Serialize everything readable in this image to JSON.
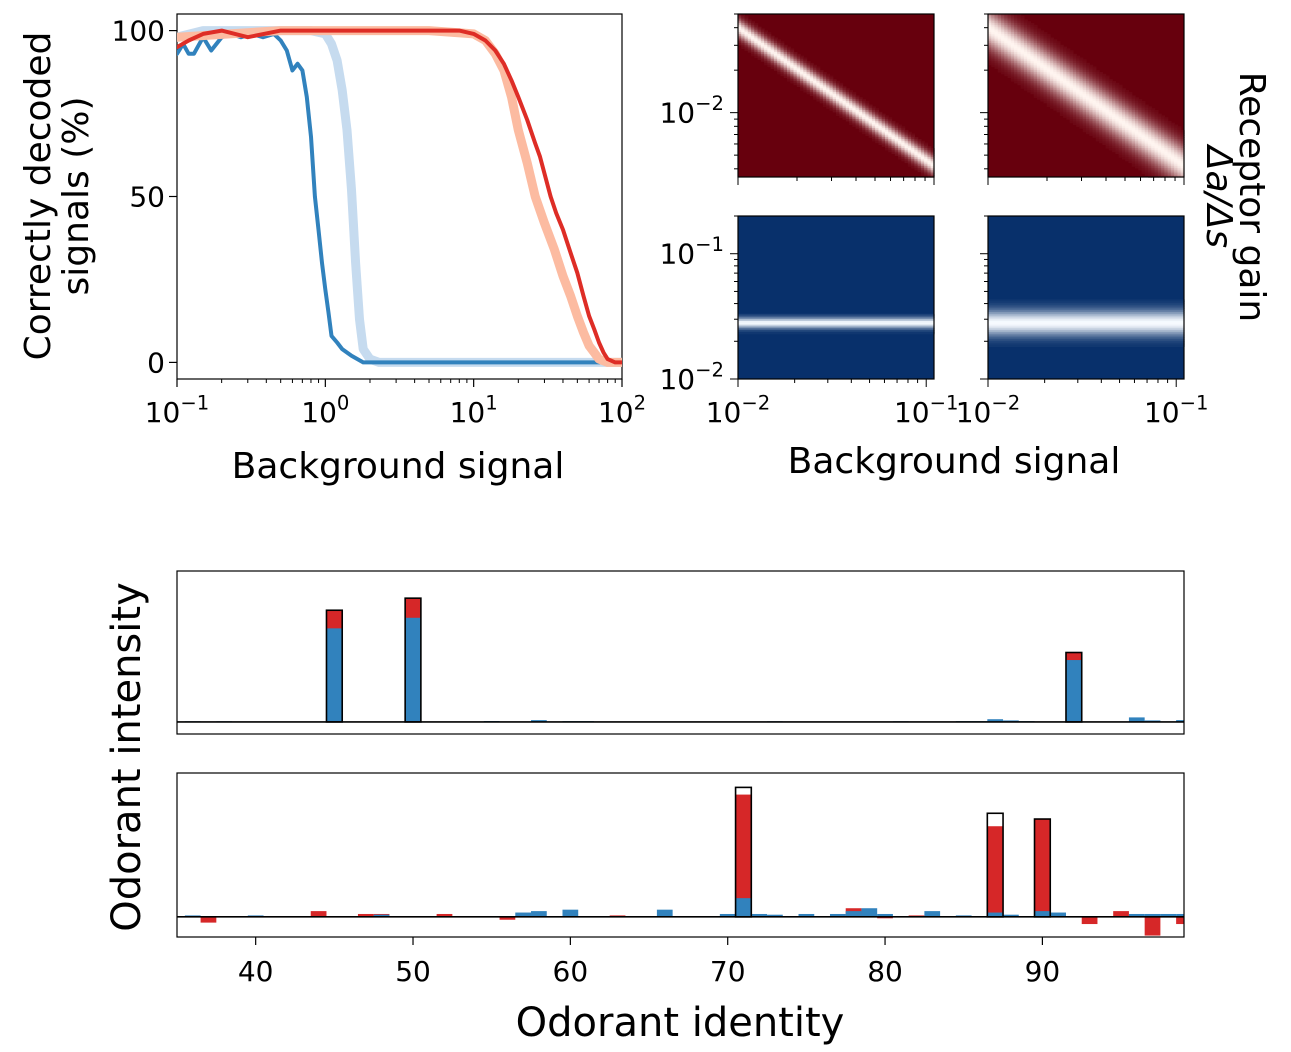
{
  "chart_data": [
    {
      "type": "line",
      "xscale": "log",
      "xlim": [
        0.1,
        100
      ],
      "ylim": [
        -5,
        105
      ],
      "xticks": [
        0.1,
        1,
        10,
        100
      ],
      "xtick_labels": [
        {
          "base": "10",
          "exp": "−1"
        },
        {
          "base": "10",
          "exp": "0"
        },
        {
          "base": "10",
          "exp": "1"
        },
        {
          "base": "10",
          "exp": "2"
        }
      ],
      "yticks": [
        0,
        50,
        100
      ],
      "ytick_labels": [
        "0",
        "50",
        "100"
      ],
      "ylabel_line1": "Correctly decoded",
      "ylabel_line2": "signals (%)",
      "xlabel": "Background signal",
      "series": [
        {
          "color": "#c6dbef",
          "width": 9,
          "x": [
            0.1,
            0.15,
            0.25,
            0.4,
            0.6,
            0.8,
            1.0,
            1.1,
            1.2,
            1.3,
            1.4,
            1.5,
            1.6,
            1.7,
            1.8,
            2.0,
            2.3,
            3,
            10,
            100
          ],
          "y": [
            98,
            100,
            100,
            100,
            100,
            100,
            99,
            96,
            91,
            82,
            70,
            52,
            30,
            13,
            4,
            1,
            0,
            0,
            0,
            0
          ]
        },
        {
          "color": "#3182bd",
          "width": 4,
          "x": [
            0.1,
            0.11,
            0.12,
            0.13,
            0.15,
            0.17,
            0.2,
            0.23,
            0.27,
            0.32,
            0.38,
            0.45,
            0.5,
            0.55,
            0.6,
            0.65,
            0.7,
            0.75,
            0.8,
            0.85,
            0.9,
            0.95,
            1.0,
            1.05,
            1.1,
            1.2,
            1.3,
            1.5,
            1.8,
            2.2,
            3,
            10,
            100
          ],
          "y": [
            93,
            96,
            93,
            93,
            98,
            94,
            98,
            99,
            98,
            99,
            98,
            99,
            97,
            94,
            88,
            90,
            88,
            80,
            68,
            50,
            40,
            30,
            22,
            15,
            8,
            6,
            4,
            2,
            0,
            0,
            0,
            0,
            0
          ]
        },
        {
          "color": "#fcbba1",
          "width": 9,
          "x": [
            0.1,
            0.5,
            1,
            5,
            10,
            12,
            14,
            16,
            18,
            20,
            23,
            26,
            30,
            35,
            40,
            45,
            50,
            55,
            60,
            65,
            70,
            80,
            100
          ],
          "y": [
            98,
            100,
            100,
            100,
            99,
            97,
            93,
            88,
            80,
            70,
            60,
            50,
            42,
            34,
            26,
            20,
            14,
            9,
            5,
            3,
            1,
            0,
            0
          ]
        },
        {
          "color": "#de2d26",
          "width": 4,
          "x": [
            0.1,
            0.12,
            0.15,
            0.2,
            0.3,
            0.5,
            1,
            3,
            8,
            10,
            12,
            14,
            16,
            18,
            20,
            23,
            26,
            28,
            30,
            33,
            36,
            40,
            45,
            50,
            55,
            60,
            65,
            70,
            75,
            80,
            90,
            100
          ],
          "y": [
            95,
            97,
            99,
            100,
            98,
            100,
            100,
            100,
            100,
            99,
            97,
            94,
            90,
            85,
            80,
            73,
            66,
            62,
            57,
            50,
            45,
            40,
            33,
            27,
            20,
            14,
            10,
            6,
            3,
            1,
            0,
            0
          ]
        }
      ]
    },
    {
      "type": "heatmap",
      "yscale": "log",
      "xlim": [
        0.01,
        0.1
      ],
      "ylim": [
        0.0035,
        0.05
      ],
      "yticks": [
        0.01
      ],
      "ytick_labels": [
        {
          "base": "10",
          "exp": "−2"
        }
      ],
      "colormap": "Reds",
      "ridge_start": 0.04,
      "ridge_end": 0.0042,
      "ridge_sigma_decades": 0.045,
      "background_color": "#67000d",
      "ridge_color": "#fff5f0"
    },
    {
      "type": "heatmap",
      "yscale": "log",
      "xlim": [
        0.01,
        0.1
      ],
      "ylim": [
        0.0035,
        0.05
      ],
      "colormap": "Reds",
      "ridge_start": 0.04,
      "ridge_end": 0.0042,
      "ridge_sigma_decades": 0.095,
      "background_color": "#67000d",
      "ridge_color": "#fff5f0"
    },
    {
      "type": "heatmap",
      "xscale": "log",
      "yscale": "log",
      "xlim": [
        0.01,
        0.11
      ],
      "ylim": [
        0.01,
        0.2
      ],
      "xticks": [
        0.01,
        0.1
      ],
      "xtick_labels": [
        {
          "base": "10",
          "exp": "−2"
        },
        {
          "base": "10",
          "exp": "−1"
        }
      ],
      "yticks": [
        0.01,
        0.1
      ],
      "ytick_labels": [
        {
          "base": "10",
          "exp": "−2"
        },
        {
          "base": "10",
          "exp": "−1"
        }
      ],
      "colormap": "Blues",
      "band_center": 0.028,
      "band_sigma_decades": 0.03,
      "background_color": "#08306b",
      "band_color": "#f7fbff"
    },
    {
      "type": "heatmap",
      "xscale": "log",
      "yscale": "log",
      "xlim": [
        0.01,
        0.11
      ],
      "ylim": [
        0.01,
        0.2
      ],
      "xticks": [
        0.01,
        0.1
      ],
      "xtick_labels": [
        {
          "base": "10",
          "exp": "−2"
        },
        {
          "base": "10",
          "exp": "−1"
        }
      ],
      "colormap": "Blues",
      "band_center": 0.028,
      "band_sigma_decades": 0.07,
      "background_color": "#08306b",
      "band_color": "#f7fbff"
    },
    {
      "type": "bar",
      "xlim": [
        35,
        99
      ],
      "ylim": [
        -0.08,
        1.0
      ],
      "bar_width": 1,
      "true_signal": [
        {
          "x": 45,
          "v": 0.74
        },
        {
          "x": 50,
          "v": 0.82
        },
        {
          "x": 92,
          "v": 0.46
        }
      ],
      "red": [
        {
          "x": 45,
          "v": 0.74
        },
        {
          "x": 50,
          "v": 0.82
        },
        {
          "x": 92,
          "v": 0.46
        }
      ],
      "blue": [
        {
          "x": 36,
          "v": 0.004
        },
        {
          "x": 38,
          "v": 0.004
        },
        {
          "x": 41,
          "v": 0.003
        },
        {
          "x": 45,
          "v": 0.62
        },
        {
          "x": 50,
          "v": 0.69
        },
        {
          "x": 55,
          "v": 0.006
        },
        {
          "x": 58,
          "v": 0.012
        },
        {
          "x": 60,
          "v": 0.005
        },
        {
          "x": 61,
          "v": 0.005
        },
        {
          "x": 73,
          "v": 0.004
        },
        {
          "x": 81,
          "v": 0.004
        },
        {
          "x": 85,
          "v": 0.005
        },
        {
          "x": 86,
          "v": 0.005
        },
        {
          "x": 87,
          "v": 0.018
        },
        {
          "x": 88,
          "v": 0.01
        },
        {
          "x": 89,
          "v": 0.005
        },
        {
          "x": 92,
          "v": 0.41
        },
        {
          "x": 96,
          "v": 0.03
        },
        {
          "x": 97,
          "v": 0.01
        },
        {
          "x": 99,
          "v": 0.012
        }
      ]
    },
    {
      "type": "bar",
      "xlim": [
        35,
        99
      ],
      "ylim": [
        -0.14,
        1.0
      ],
      "bar_width": 1,
      "xticks": [
        40,
        50,
        60,
        70,
        80,
        90
      ],
      "xtick_labels": [
        "40",
        "50",
        "60",
        "70",
        "80",
        "90"
      ],
      "xlabel": "Odorant identity",
      "ylabel": "Odorant intensity",
      "true_signal": [
        {
          "x": 71,
          "v": 0.9
        },
        {
          "x": 87,
          "v": 0.72
        },
        {
          "x": 90,
          "v": 0.68
        }
      ],
      "red": [
        {
          "x": 37,
          "v": -0.04
        },
        {
          "x": 44,
          "v": 0.04
        },
        {
          "x": 46,
          "v": 0.006
        },
        {
          "x": 47,
          "v": 0.02
        },
        {
          "x": 48,
          "v": 0.02
        },
        {
          "x": 52,
          "v": 0.02
        },
        {
          "x": 56,
          "v": -0.02
        },
        {
          "x": 63,
          "v": 0.01
        },
        {
          "x": 71,
          "v": 0.85
        },
        {
          "x": 78,
          "v": 0.06
        },
        {
          "x": 80,
          "v": -0.01
        },
        {
          "x": 82,
          "v": 0.01
        },
        {
          "x": 87,
          "v": 0.63
        },
        {
          "x": 90,
          "v": 0.68
        },
        {
          "x": 93,
          "v": -0.05
        },
        {
          "x": 95,
          "v": 0.04
        },
        {
          "x": 97,
          "v": -0.13
        },
        {
          "x": 99,
          "v": -0.05
        }
      ],
      "blue": [
        {
          "x": 36,
          "v": 0.01
        },
        {
          "x": 38,
          "v": 0.005
        },
        {
          "x": 40,
          "v": 0.01
        },
        {
          "x": 48,
          "v": 0.015
        },
        {
          "x": 57,
          "v": 0.03
        },
        {
          "x": 58,
          "v": 0.04
        },
        {
          "x": 60,
          "v": 0.05
        },
        {
          "x": 66,
          "v": 0.05
        },
        {
          "x": 67,
          "v": 0.006
        },
        {
          "x": 70,
          "v": 0.02
        },
        {
          "x": 71,
          "v": 0.13
        },
        {
          "x": 72,
          "v": 0.02
        },
        {
          "x": 73,
          "v": 0.015
        },
        {
          "x": 75,
          "v": 0.02
        },
        {
          "x": 77,
          "v": 0.02
        },
        {
          "x": 78,
          "v": 0.04
        },
        {
          "x": 79,
          "v": 0.06
        },
        {
          "x": 80,
          "v": 0.02
        },
        {
          "x": 83,
          "v": 0.04
        },
        {
          "x": 85,
          "v": 0.01
        },
        {
          "x": 87,
          "v": 0.03
        },
        {
          "x": 88,
          "v": 0.015
        },
        {
          "x": 90,
          "v": 0.04
        },
        {
          "x": 91,
          "v": 0.03
        },
        {
          "x": 96,
          "v": 0.02
        },
        {
          "x": 97,
          "v": 0.02
        },
        {
          "x": 98,
          "v": 0.02
        },
        {
          "x": 99,
          "v": 0.02
        }
      ]
    }
  ],
  "heatmap_labels": {
    "xlabel": "Background signal",
    "ylabel_line1": "Receptor gain",
    "ylabel_line2": "Δa/Δs"
  },
  "colors": {
    "red": "#d62728",
    "blue": "#3182bd",
    "outline": "#000000"
  }
}
